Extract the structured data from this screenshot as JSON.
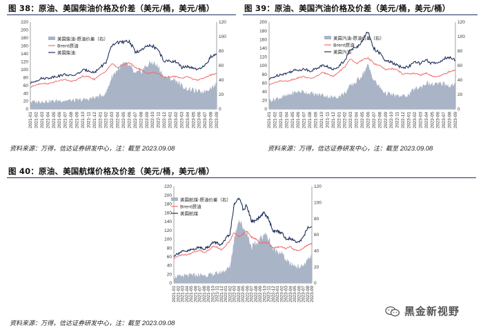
{
  "figures": [
    {
      "title": "图 38：原油、美国柴油价格及价差（美元/桶，美元/桶）",
      "source_text": "资料来源：万得，信达证券研发中心，注：截至",
      "source_date": "2023.09.08"
    },
    {
      "title": "图 39：原油、美国汽油价格及价差（美元/桶，美元/桶）",
      "source_text": "资料来源：万得，信达证券研发中心，注：截至",
      "source_date": "2023.09.08"
    },
    {
      "title": "图 40：原油、美国航煤价格及价差（美元/桶，美元/桶）",
      "source_text": "资料来源：万得，信达证券研发中心，注：截至",
      "source_date": "2023.09.08"
    }
  ],
  "watermark": {
    "text": "黑金新视野",
    "icon": "wechat-icon"
  },
  "colors": {
    "product": "#1f2d5c",
    "brent": "#f26b6b",
    "spread": "#a9b4c6",
    "axis": "#888888"
  },
  "chart_data": [
    {
      "type": "area",
      "x_ticks": [
        "2021-01",
        "2021-02",
        "2021-03",
        "2021-04",
        "2021-05",
        "2021-06",
        "2021-07",
        "2021-08",
        "2021-09",
        "2021-10",
        "2021-11",
        "2021-12",
        "2022-01",
        "2022-02",
        "2022-03",
        "2022-04",
        "2022-05",
        "2022-06",
        "2022-07",
        "2022-08",
        "2022-09",
        "2022-10",
        "2022-11",
        "2022-12",
        "2023-01",
        "2023-02",
        "2023-03",
        "2023-04",
        "2023-05",
        "2023-06",
        "2023-07",
        "2023-08",
        "2023-09"
      ],
      "ylim_left": [
        0,
        220
      ],
      "yticks_left": [
        0,
        20,
        40,
        60,
        80,
        100,
        120,
        140,
        160,
        180,
        200,
        220
      ],
      "ylim_right": [
        0,
        120
      ],
      "yticks_right": [
        0,
        20,
        40,
        60,
        80,
        100,
        120
      ],
      "legend_position": "top-left",
      "series": [
        {
          "name": "美国柴油-原油价差（右）",
          "axis": "right",
          "kind": "area",
          "values": [
            10,
            10,
            11,
            11,
            11,
            12,
            12,
            12,
            12,
            13,
            14,
            16,
            18,
            22,
            45,
            55,
            62,
            60,
            48,
            52,
            60,
            65,
            58,
            45,
            42,
            40,
            32,
            28,
            26,
            24,
            25,
            30,
            34
          ]
        },
        {
          "name": "Brent原油",
          "axis": "left",
          "kind": "line",
          "values": [
            55,
            62,
            65,
            64,
            68,
            72,
            75,
            70,
            74,
            83,
            82,
            75,
            86,
            97,
            115,
            105,
            112,
            118,
            105,
            100,
            90,
            93,
            90,
            80,
            82,
            82,
            78,
            83,
            75,
            74,
            80,
            86,
            90
          ]
        },
        {
          "name": "美国柴油",
          "axis": "left",
          "kind": "line",
          "values": [
            65,
            72,
            78,
            78,
            82,
            84,
            88,
            84,
            88,
            98,
            98,
            92,
            106,
            118,
            160,
            170,
            168,
            172,
            145,
            148,
            158,
            160,
            148,
            120,
            122,
            120,
            105,
            108,
            102,
            100,
            110,
            132,
            140
          ]
        }
      ]
    },
    {
      "type": "area",
      "x_ticks": [
        "2021-01",
        "2021-02",
        "2021-03",
        "2021-04",
        "2021-05",
        "2021-06",
        "2021-07",
        "2021-08",
        "2021-09",
        "2021-10",
        "2021-11",
        "2021-12",
        "2022-01",
        "2022-02",
        "2022-03",
        "2022-04",
        "2022-05",
        "2022-06",
        "2022-07",
        "2022-08",
        "2022-09",
        "2022-10",
        "2022-11",
        "2022-12",
        "2023-01",
        "2023-02",
        "2023-03",
        "2023-04",
        "2023-05",
        "2023-06",
        "2023-07",
        "2023-08",
        "2023-09"
      ],
      "ylim_left": [
        0,
        200
      ],
      "yticks_left": [
        0,
        20,
        40,
        60,
        80,
        100,
        120,
        140,
        160,
        180,
        200
      ],
      "ylim_right": [
        0,
        120
      ],
      "yticks_right": [
        0,
        20,
        40,
        60,
        80,
        100,
        120
      ],
      "legend_position": "top-right",
      "series": [
        {
          "name": "美国汽油-原油价差（右）",
          "axis": "right",
          "kind": "area",
          "values": [
            12,
            14,
            16,
            18,
            22,
            24,
            24,
            22,
            20,
            20,
            18,
            16,
            18,
            22,
            32,
            38,
            48,
            60,
            40,
            30,
            22,
            20,
            18,
            18,
            20,
            28,
            30,
            36,
            34,
            34,
            36,
            32,
            34
          ]
        },
        {
          "name": "Brent原油",
          "axis": "left",
          "kind": "line",
          "values": [
            55,
            62,
            65,
            64,
            68,
            72,
            75,
            70,
            74,
            83,
            82,
            75,
            86,
            97,
            115,
            105,
            112,
            118,
            105,
            100,
            90,
            93,
            90,
            80,
            82,
            82,
            78,
            83,
            75,
            74,
            80,
            86,
            90
          ]
        },
        {
          "name": "美国汽油",
          "axis": "left",
          "kind": "line",
          "values": [
            68,
            75,
            80,
            82,
            88,
            90,
            92,
            88,
            92,
            100,
            98,
            90,
            100,
            112,
            138,
            140,
            158,
            178,
            140,
            128,
            110,
            108,
            100,
            95,
            98,
            108,
            105,
            112,
            105,
            106,
            116,
            118,
            112
          ]
        }
      ]
    },
    {
      "type": "area",
      "x_ticks": [
        "2021-01",
        "2021-02",
        "2021-03",
        "2021-04",
        "2021-05",
        "2021-06",
        "2021-07",
        "2021-08",
        "2021-09",
        "2021-10",
        "2021-11",
        "2021-12",
        "2022-01",
        "2022-02",
        "2022-03",
        "2022-04",
        "2022-05",
        "2022-06",
        "2022-07",
        "2022-08",
        "2022-09",
        "2022-10",
        "2022-11",
        "2022-12",
        "2023-01",
        "2023-02",
        "2023-03",
        "2023-04",
        "2023-05",
        "2023-06",
        "2023-07",
        "2023-08",
        "2023-09"
      ],
      "ylim_left": [
        0,
        220
      ],
      "yticks_left": [
        0,
        20,
        40,
        60,
        80,
        100,
        120,
        140,
        160,
        180,
        200,
        220
      ],
      "ylim_right": [
        0,
        120
      ],
      "yticks_right": [
        0,
        20,
        40,
        60,
        80,
        100,
        120
      ],
      "legend_position": "top-left",
      "series": [
        {
          "name": "美国航煤-原油价差（右）",
          "axis": "right",
          "kind": "area",
          "values": [
            8,
            8,
            9,
            9,
            10,
            10,
            10,
            10,
            10,
            11,
            12,
            14,
            16,
            20,
            55,
            80,
            70,
            62,
            45,
            48,
            55,
            62,
            55,
            42,
            40,
            38,
            28,
            24,
            22,
            20,
            22,
            28,
            34
          ]
        },
        {
          "name": "Brent原油",
          "axis": "left",
          "kind": "line",
          "values": [
            55,
            62,
            65,
            64,
            68,
            72,
            75,
            70,
            74,
            83,
            82,
            75,
            86,
            97,
            115,
            105,
            112,
            118,
            105,
            100,
            90,
            93,
            90,
            80,
            82,
            82,
            78,
            83,
            75,
            74,
            80,
            86,
            90
          ]
        },
        {
          "name": "美国航煤",
          "axis": "left",
          "kind": "line",
          "values": [
            62,
            68,
            72,
            72,
            76,
            78,
            82,
            78,
            82,
            92,
            92,
            86,
            100,
            112,
            178,
            195,
            170,
            175,
            140,
            142,
            150,
            160,
            145,
            118,
            118,
            115,
            100,
            102,
            96,
            94,
            104,
            125,
            128
          ]
        }
      ]
    }
  ]
}
